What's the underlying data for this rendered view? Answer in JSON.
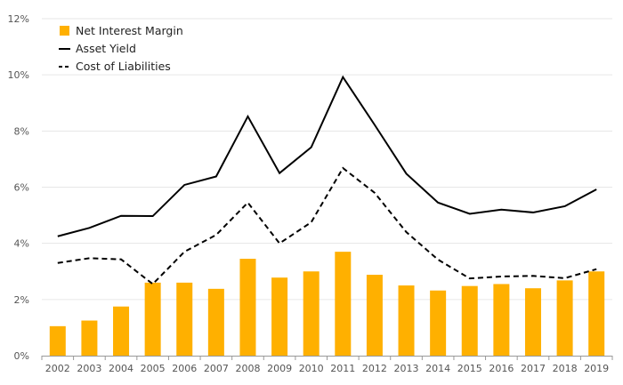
{
  "chart_data": {
    "type": "bar",
    "categories": [
      "2002",
      "2003",
      "2004",
      "2005",
      "2006",
      "2007",
      "2008",
      "2009",
      "2010",
      "2011",
      "2012",
      "2013",
      "2014",
      "2015",
      "2016",
      "2017",
      "2018",
      "2019"
    ],
    "series": [
      {
        "name": "Net Interest Margin",
        "type": "bar",
        "values": [
          1.05,
          1.25,
          1.75,
          2.6,
          2.6,
          2.38,
          3.45,
          2.78,
          3.0,
          3.7,
          2.88,
          2.5,
          2.32,
          2.48,
          2.55,
          2.4,
          2.68,
          3.0
        ]
      },
      {
        "name": "Asset Yield",
        "type": "line",
        "style": "solid",
        "values": [
          4.25,
          4.55,
          4.98,
          4.97,
          6.08,
          6.38,
          8.52,
          6.5,
          7.42,
          9.92,
          8.22,
          6.48,
          5.45,
          5.05,
          5.2,
          5.1,
          5.32,
          5.92
        ]
      },
      {
        "name": "Cost of Liabilities",
        "type": "line",
        "style": "dashed",
        "values": [
          3.3,
          3.47,
          3.43,
          2.55,
          3.7,
          4.3,
          5.45,
          4.0,
          4.75,
          6.68,
          5.8,
          4.4,
          3.42,
          2.75,
          2.82,
          2.84,
          2.76,
          3.08
        ]
      }
    ],
    "ylim": [
      0,
      12
    ],
    "yticks": [
      0,
      2,
      4,
      6,
      8,
      10,
      12
    ],
    "ytick_labels": [
      "0%",
      "2%",
      "4%",
      "6%",
      "8%",
      "10%",
      "12%"
    ],
    "grid": true,
    "legend_position": "top-left",
    "colors": {
      "bar": "#FFB000",
      "asset_line": "#000000",
      "liability_line": "#000000",
      "grid": "#e6e6e6",
      "axis": "#999999"
    }
  }
}
